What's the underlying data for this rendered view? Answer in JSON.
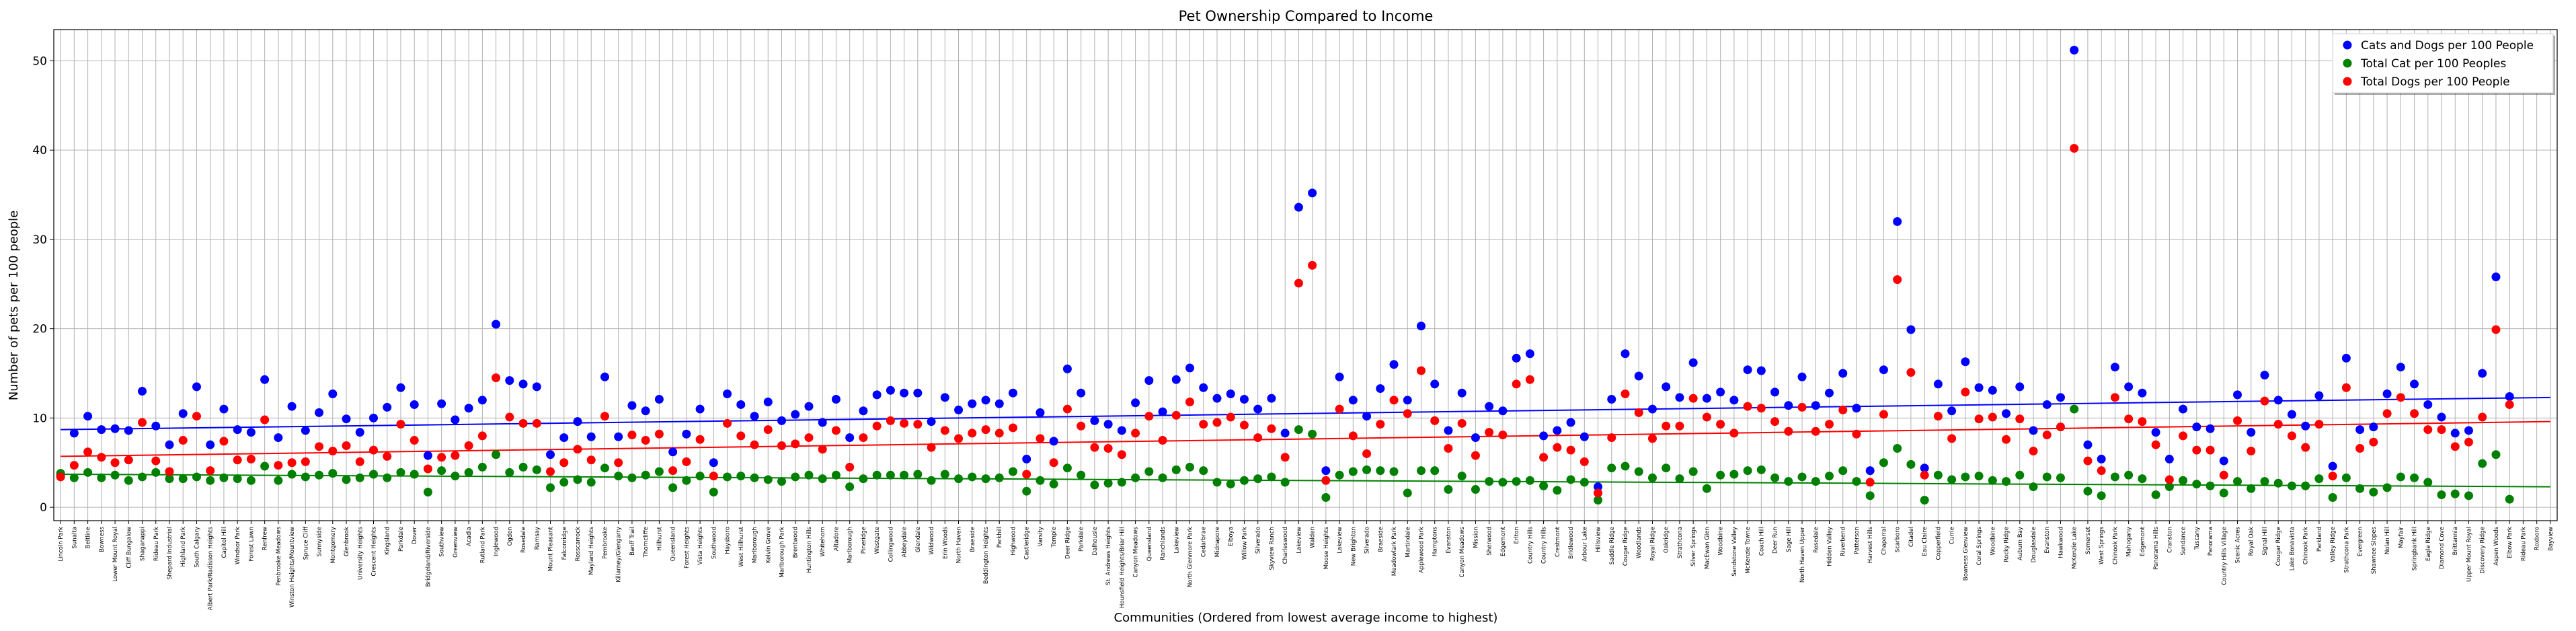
{
  "chart_data": {
    "type": "scatter",
    "title": "Pet Ownership Compared to Income",
    "xlabel": "Communities (Ordered from lowest average income to highest)",
    "ylabel": "Number of pets per 100 people",
    "ylim": [
      -1.5,
      53.5
    ],
    "yticks": [
      0,
      10,
      20,
      30,
      40,
      50
    ],
    "grid": true,
    "legend_position": "top-right",
    "categories": [
      "Lincoln Park",
      "Sunalta",
      "Beltline",
      "Bowness",
      "Lower Mount Royal",
      "Cliff Bungalow",
      "Shaganappi",
      "Rideau Park",
      "Shepard Industrial",
      "Highland Park",
      "South Calgary",
      "Albert Park/Radisson Heights",
      "Capitol Hill",
      "Windsor Park",
      "Forest Lawn",
      "Renfrew",
      "Penbrooke Meadows",
      "Winston Heights/Mountview",
      "Spruce Cliff",
      "Sunnyside",
      "Montgomery",
      "Glenbrook",
      "University Heights",
      "Crescent Heights",
      "Kingsland",
      "Parkdale",
      "Dover",
      "Bridgeland/Riverside",
      "Southview",
      "Greenview",
      "Acadia",
      "Rutland Park",
      "Inglewood",
      "Ogden",
      "Rosedale",
      "Ramsay",
      "Mount Pleasant",
      "Falconridge",
      "Rosscarrock",
      "Mayland Heights",
      "Pembrooke",
      "Killarney/Glengarry",
      "Banff Trail",
      "Thorncliffe",
      "Hillhurst",
      "Queensland",
      "Forest Heights",
      "Vista Heights",
      "Southwood",
      "Haysboro",
      "West Hillhurst",
      "Marlborough",
      "Kelvin Grove",
      "Marlborough Park",
      "Brentwood",
      "Huntington Hills",
      "Whitehorn",
      "Altadore",
      "Marlborough",
      "Pineridge",
      "Westgate",
      "Collingwood",
      "Abbeydale",
      "Glendale",
      "Wildwood",
      "Erin Woods",
      "North Haven",
      "Braeside",
      "Beddington Heights",
      "Parkhill",
      "Highwood",
      "Castleridge",
      "Varsity",
      "Temple",
      "Deer Ridge",
      "Parkdale",
      "Dalhousie",
      "St. Andrews Heights",
      "Hounsfield Heights/Briar Hill",
      "Canyon Meadows",
      "Queensland",
      "Ranchlands",
      "Lakeview",
      "North Glenmore Park",
      "Cedarbrae",
      "Midnapore",
      "Elboya",
      "Willow Park",
      "Silverado",
      "Skyview Ranch",
      "Charleswood",
      "Lakeview",
      "Walden",
      "Moose Heights",
      "Lakeview",
      "New Brighton",
      "Silverado",
      "Braeside",
      "Meadowlark Park",
      "Martindale",
      "Applewood Park",
      "Hamptons",
      "Evanston",
      "Canyon Meadows",
      "Mission",
      "Sherwood",
      "Edgemont",
      "Erlton",
      "Country Hills",
      "Country Hills",
      "Crestmont",
      "Bridlewood",
      "Arbour Lake",
      "Hillsview",
      "Saddle Ridge",
      "Cougar Ridge",
      "Woodlands",
      "Royal Ridge",
      "Oakridge",
      "Strathcona",
      "Silver Springs",
      "MacEwan Glen",
      "Woodbine",
      "Sandstone Valley",
      "McKenzie Towne",
      "Coach Hill",
      "Deer Run",
      "Sage Hill",
      "North Haven Upper",
      "Rosedale",
      "Hidden Valley",
      "Riverbend",
      "Patterson",
      "Harvest Hills",
      "Chaparral",
      "Scarboro",
      "Citadel",
      "Eau Claire",
      "Copperfield",
      "Currie",
      "Bowness Glenview",
      "Coral Springs",
      "Woodbine",
      "Rocky Ridge",
      "Auburn Bay",
      "Douglasdale",
      "Evanston",
      "Hawkwood",
      "McKenzie Lake",
      "Somerset",
      "West Springs",
      "Chinook Park",
      "Mahogany",
      "Edgemont",
      "Panorama Hills",
      "Cranston",
      "Sundance",
      "Tuscany",
      "Panorama",
      "Country Hills Village",
      "Scenic Acres",
      "Royal Oak",
      "Signal Hill",
      "Cougar Ridge",
      "Lake Bonavista",
      "Chinook Park",
      "Parkland",
      "Valley Ridge",
      "Strathcona Park",
      "Evergreen",
      "Shawnee Slopes",
      "Nolan Hill",
      "Mayfair",
      "Springbank Hill",
      "Eagle Ridge",
      "Diamond Cove",
      "Brittannia",
      "Upper Mount Royal",
      "Discovery Ridge",
      "Aspen Woods",
      "Elbow Park",
      "Rideau Park",
      "Roxboro",
      "Bayview"
    ],
    "series": [
      {
        "name": "Cats and Dogs per 100 People",
        "color": "#0000ff",
        "values": [
          3.6,
          8.3,
          10.2,
          8.7,
          8.8,
          8.6,
          13.0,
          9.1,
          7.0,
          10.5,
          13.5,
          7.0,
          11.0,
          8.7,
          8.4,
          14.3,
          7.8,
          11.3,
          8.6,
          10.6,
          12.7,
          9.9,
          8.4,
          10.0,
          11.2,
          13.4,
          11.5,
          5.8,
          11.6,
          9.8,
          11.1,
          12.0,
          20.5,
          14.2,
          13.8,
          13.5,
          5.9,
          7.8,
          9.6,
          7.9,
          14.6,
          7.9,
          11.4,
          10.8,
          12.1,
          6.2,
          8.2,
          11.0,
          5.0,
          12.7,
          11.5,
          10.2,
          11.8,
          9.7,
          10.4,
          11.3,
          9.5,
          12.1,
          7.8,
          10.8,
          12.6,
          13.1,
          12.8,
          12.8,
          9.6,
          12.3,
          10.9,
          11.6,
          12.0,
          11.6,
          12.8,
          5.4,
          10.6,
          7.4,
          15.5,
          12.8,
          9.7,
          9.3,
          8.6,
          11.7,
          14.2,
          10.7,
          14.3,
          15.6,
          13.4,
          12.2,
          12.7,
          12.1,
          11.0,
          12.2,
          8.3,
          33.6,
          35.2,
          4.1,
          14.6,
          12.0,
          10.2,
          13.3,
          16.0,
          12.0,
          20.3,
          13.8,
          8.6,
          12.8,
          7.8,
          11.3,
          10.8,
          16.7,
          17.2,
          8.0,
          8.6,
          9.5,
          7.9,
          2.3,
          12.1,
          17.2,
          14.7,
          11.0,
          13.5,
          12.3,
          16.2,
          12.2,
          12.9,
          12.0,
          15.4,
          15.3,
          12.9,
          11.4,
          14.6,
          11.4,
          12.8,
          15.0,
          11.1,
          4.1,
          15.4,
          32.0,
          19.9,
          4.4,
          13.8,
          10.8,
          16.3,
          13.4,
          13.1,
          10.5,
          13.5,
          8.6,
          11.5,
          12.3,
          51.2,
          7.0,
          5.4,
          15.7,
          13.5,
          12.8,
          8.4,
          5.4,
          11.0,
          9.0,
          8.8,
          5.2,
          12.6,
          8.4,
          14.8,
          12.0,
          10.4,
          9.1,
          12.5,
          4.6,
          16.7,
          8.7,
          9.0,
          12.7,
          15.7,
          13.8,
          11.5,
          10.1,
          8.3,
          8.6,
          15.0,
          25.8,
          12.4
        ]
      },
      {
        "name": "Total Cat per 100 Peoples",
        "color": "#008000",
        "values": [
          3.8,
          3.3,
          3.9,
          3.3,
          3.6,
          3.0,
          3.4,
          3.9,
          3.2,
          3.2,
          3.4,
          3.0,
          3.3,
          3.2,
          3.0,
          4.6,
          3.0,
          3.7,
          3.4,
          3.6,
          3.8,
          3.1,
          3.3,
          3.7,
          3.3,
          3.9,
          3.7,
          1.7,
          4.1,
          3.5,
          3.9,
          4.5,
          5.9,
          3.9,
          4.5,
          4.2,
          2.2,
          2.8,
          3.1,
          2.8,
          4.4,
          3.5,
          3.3,
          3.6,
          4.0,
          2.2,
          3.0,
          3.5,
          1.7,
          3.4,
          3.5,
          3.3,
          3.1,
          2.9,
          3.4,
          3.6,
          3.2,
          3.6,
          2.3,
          3.2,
          3.6,
          3.6,
          3.6,
          3.7,
          3.0,
          3.7,
          3.2,
          3.4,
          3.2,
          3.3,
          4.0,
          1.8,
          3.0,
          2.6,
          4.4,
          3.6,
          2.5,
          2.7,
          2.8,
          3.3,
          4.0,
          3.3,
          4.2,
          4.5,
          4.1,
          2.8,
          2.6,
          3.0,
          3.2,
          3.4,
          2.8,
          8.7,
          8.2,
          1.1,
          3.6,
          4.0,
          4.2,
          4.1,
          4.0,
          1.6,
          4.1,
          4.1,
          2.0,
          3.5,
          2.0,
          2.9,
          2.8,
          2.9,
          3.0,
          2.4,
          1.9,
          3.1,
          2.8,
          0.8,
          4.4,
          4.6,
          4.0,
          3.3,
          4.4,
          3.2,
          4.0,
          2.1,
          3.6,
          3.7,
          4.1,
          4.2,
          3.3,
          2.9,
          3.4,
          2.9,
          3.5,
          4.1,
          2.9,
          1.3,
          5.0,
          6.6,
          4.8,
          0.8,
          3.6,
          3.1,
          3.4,
          3.5,
          3.0,
          2.9,
          3.6,
          2.3,
          3.4,
          3.3,
          11.0,
          1.8,
          1.3,
          3.4,
          3.6,
          3.2,
          1.4,
          2.3,
          3.0,
          2.6,
          2.4,
          1.6,
          2.9,
          2.1,
          2.9,
          2.7,
          2.4,
          2.4,
          3.2,
          1.1,
          3.3,
          2.1,
          1.7,
          2.2,
          3.4,
          3.3,
          2.8,
          1.4,
          1.5,
          1.3,
          4.9,
          5.9,
          0.9
        ]
      },
      {
        "name": "Total Dogs per 100 People",
        "color": "#ff0000",
        "values": [
          3.4,
          4.7,
          6.2,
          5.6,
          5.0,
          5.3,
          9.5,
          5.2,
          4.0,
          7.5,
          10.2,
          4.1,
          7.4,
          5.3,
          5.4,
          9.8,
          4.7,
          5.0,
          5.1,
          6.8,
          6.3,
          6.9,
          5.1,
          6.4,
          5.7,
          9.3,
          7.5,
          4.3,
          5.6,
          5.8,
          6.9,
          8.0,
          14.5,
          10.1,
          9.4,
          9.4,
          4.0,
          5.0,
          6.5,
          5.3,
          10.2,
          5.0,
          8.1,
          7.5,
          8.2,
          4.1,
          5.1,
          7.6,
          3.5,
          9.4,
          8.0,
          7.0,
          8.7,
          6.9,
          7.1,
          7.8,
          6.5,
          8.6,
          4.5,
          7.8,
          9.1,
          9.7,
          9.4,
          9.3,
          6.7,
          8.6,
          7.7,
          8.3,
          8.7,
          8.3,
          8.9,
          3.7,
          7.7,
          5.0,
          11.0,
          9.1,
          6.7,
          6.6,
          5.9,
          8.3,
          10.2,
          7.5,
          10.3,
          11.8,
          9.3,
          9.5,
          10.1,
          9.2,
          7.8,
          8.8,
          5.6,
          25.1,
          27.1,
          3.0,
          11.0,
          8.0,
          6.0,
          9.3,
          12.0,
          10.5,
          15.3,
          9.7,
          6.6,
          9.4,
          5.8,
          8.4,
          8.1,
          13.8,
          14.3,
          5.6,
          6.7,
          6.4,
          5.1,
          1.6,
          7.8,
          12.7,
          10.6,
          7.7,
          9.1,
          9.1,
          12.2,
          10.1,
          9.3,
          8.3,
          11.3,
          11.1,
          9.6,
          8.5,
          11.2,
          8.5,
          9.3,
          10.9,
          8.2,
          2.8,
          10.4,
          25.5,
          15.1,
          3.6,
          10.2,
          7.7,
          12.9,
          9.9,
          10.1,
          7.6,
          9.9,
          6.3,
          8.1,
          9.0,
          40.2,
          5.2,
          4.1,
          12.3,
          9.9,
          9.6,
          7.0,
          3.1,
          8.0,
          6.4,
          6.4,
          3.6,
          9.7,
          6.3,
          11.9,
          9.3,
          8.0,
          6.7,
          9.3,
          3.5,
          13.4,
          6.6,
          7.3,
          10.5,
          12.3,
          10.5,
          8.7,
          8.7,
          6.8,
          7.3,
          10.1,
          19.9,
          11.5
        ]
      }
    ],
    "trend_lines": [
      {
        "series": "Cats and Dogs per 100 People",
        "color": "#0000ff",
        "start": 8.7,
        "end": 12.3
      },
      {
        "series": "Total Cat per 100 Peoples",
        "color": "#008000",
        "start": 3.7,
        "end": 2.3
      },
      {
        "series": "Total Dogs per 100 People",
        "color": "#ff0000",
        "start": 5.7,
        "end": 9.6
      }
    ]
  }
}
